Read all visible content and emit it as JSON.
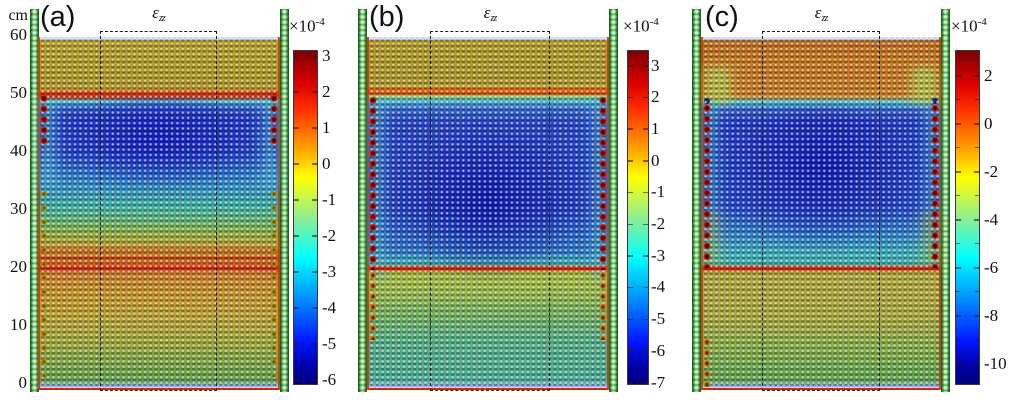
{
  "figure_title": "Vertical strain fields in granular column simulation",
  "y_axis": {
    "unit": "cm",
    "ticks": [
      60,
      50,
      40,
      30,
      20,
      10,
      0
    ]
  },
  "panels": [
    {
      "letter": "(a)",
      "title_base": "ε",
      "title_sub": "zz",
      "colorbar": {
        "exp_base": "×10",
        "exp_power": "-4",
        "ticks": [
          3,
          2,
          1,
          0,
          -1,
          -2,
          -3,
          -4,
          -5,
          -6
        ]
      }
    },
    {
      "letter": "(b)",
      "title_base": "ε",
      "title_sub": "zz",
      "colorbar": {
        "exp_base": "×10",
        "exp_power": "-4",
        "ticks": [
          3,
          2,
          1,
          0,
          -1,
          -2,
          -3,
          -4,
          -5,
          -6,
          -7
        ]
      }
    },
    {
      "letter": "(c)",
      "title_base": "ε",
      "title_sub": "zz",
      "colorbar": {
        "exp_base": "×10",
        "exp_power": "-4",
        "ticks": [
          2,
          0,
          -2,
          -4,
          -6,
          -8,
          -10
        ]
      }
    }
  ],
  "chart_data": [
    {
      "type": "heatmap",
      "panel": "(a)",
      "title": "ε_zz",
      "value_scale": "1e-4",
      "colorbar_ticks": [
        3,
        2,
        1,
        0,
        -1,
        -2,
        -3,
        -4,
        -5,
        -6
      ],
      "colorbar_range": [
        3.4,
        -6.2
      ],
      "colormap": "jet",
      "y_axis_cm": [
        0,
        60
      ],
      "interfaces_cm": [
        50,
        20
      ],
      "layers": [
        {
          "from_cm": 50,
          "to_cm": 60,
          "strain_e4": 0.2,
          "color": "olive"
        },
        {
          "at_cm": 50,
          "strain_e4": 3,
          "color": "red band"
        },
        {
          "from_cm": 40,
          "to_cm": 49,
          "strain_e4": -5.5,
          "color": "dark blue core"
        },
        {
          "from_cm": 30,
          "to_cm": 40,
          "strain_e4": -3.5,
          "color": "blue-cyan"
        },
        {
          "from_cm": 23,
          "to_cm": 30,
          "strain_e4": -1.5,
          "color": "green-yellow"
        },
        {
          "from_cm": 20,
          "to_cm": 23,
          "strain_e4": 1.5,
          "color": "orange streaks"
        },
        {
          "at_cm": 20,
          "strain_e4": 3,
          "color": "red line"
        },
        {
          "from_cm": 10,
          "to_cm": 20,
          "strain_e4": 0.3,
          "color": "yellow-orange"
        },
        {
          "from_cm": 0,
          "to_cm": 10,
          "strain_e4": -1.2,
          "color": "green"
        }
      ]
    },
    {
      "type": "heatmap",
      "panel": "(b)",
      "title": "ε_zz",
      "value_scale": "1e-4",
      "colorbar_ticks": [
        3,
        2,
        1,
        0,
        -1,
        -2,
        -3,
        -4,
        -5,
        -6,
        -7
      ],
      "colorbar_range": [
        3.5,
        -7.1
      ],
      "colormap": "jet",
      "y_axis_cm": [
        0,
        60
      ],
      "interfaces_cm": [
        51,
        20
      ],
      "layers": [
        {
          "from_cm": 51,
          "to_cm": 60,
          "strain_e4": 0.2,
          "color": "olive"
        },
        {
          "at_cm": 51,
          "strain_e4": 2.5,
          "color": "orange-red band"
        },
        {
          "from_cm": 20,
          "to_cm": 50,
          "strain_e4": -6.5,
          "color": "large dark blue bowl, cyan near walls"
        },
        {
          "at_cm": 20,
          "strain_e4": 2.5,
          "color": "red line"
        },
        {
          "from_cm": 12,
          "to_cm": 20,
          "strain_e4": -1,
          "color": "yellow-green"
        },
        {
          "from_cm": 0,
          "to_cm": 12,
          "strain_e4": -2.5,
          "color": "green-teal"
        }
      ]
    },
    {
      "type": "heatmap",
      "panel": "(c)",
      "title": "ε_zz",
      "value_scale": "1e-4",
      "colorbar_ticks": [
        2,
        0,
        -2,
        -4,
        -6,
        -8,
        -10
      ],
      "colorbar_range": [
        3.5,
        -10.9
      ],
      "colormap": "jet",
      "y_axis_cm": [
        0,
        60
      ],
      "interfaces_cm": [
        50,
        20
      ],
      "layers": [
        {
          "from_cm": 50,
          "to_cm": 60,
          "strain_e4": 1.5,
          "color": "orange block, yellow-green corners"
        },
        {
          "from_cm": 20,
          "to_cm": 50,
          "strain_e4": -9,
          "color": "deep blue bowl, cyan lower rows"
        },
        {
          "at_cm": 20,
          "strain_e4": 2,
          "color": "red line"
        },
        {
          "from_cm": 8,
          "to_cm": 20,
          "strain_e4": -1.5,
          "color": "olive-yellow"
        },
        {
          "from_cm": 0,
          "to_cm": 8,
          "strain_e4": -3,
          "color": "green-teal"
        }
      ]
    }
  ]
}
